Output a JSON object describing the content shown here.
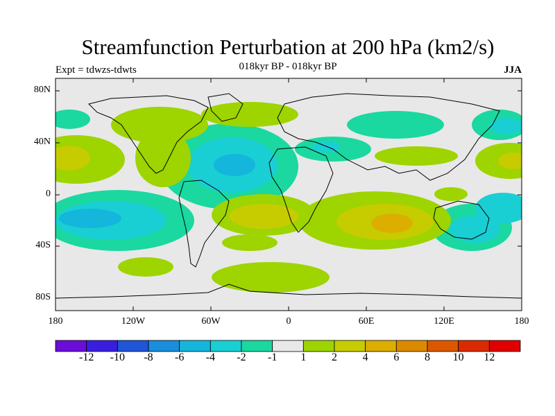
{
  "title": "Streamfunction Perturbation at 200 hPa (km2/s)",
  "subtitle": "018kyr BP - 018kyr BP",
  "experiment": "Expt = tdwzs-tdwts",
  "season": "JJA",
  "colors": {
    "neutral": "#e8e8e8",
    "levels": [
      "#6a0dd9",
      "#3a1ee0",
      "#1f55d6",
      "#1a8edc",
      "#14b6dc",
      "#19cfd3",
      "#1ad8a0",
      "#e8e8e8",
      "#9ed400",
      "#c6cc00",
      "#dcae00",
      "#dc8a00",
      "#dc5800",
      "#dc2a00",
      "#e00000"
    ]
  },
  "map": {
    "lat_labels": [
      "80N",
      "40N",
      "0",
      "40S",
      "80S"
    ],
    "lon_labels": [
      "180",
      "120W",
      "60W",
      "0",
      "60E",
      "120E",
      "180"
    ]
  },
  "colorbar": {
    "labels": [
      "-12",
      "-10",
      "-8",
      "-6",
      "-4",
      "-2",
      "-1",
      "1",
      "2",
      "4",
      "6",
      "8",
      "10",
      "12"
    ]
  }
}
